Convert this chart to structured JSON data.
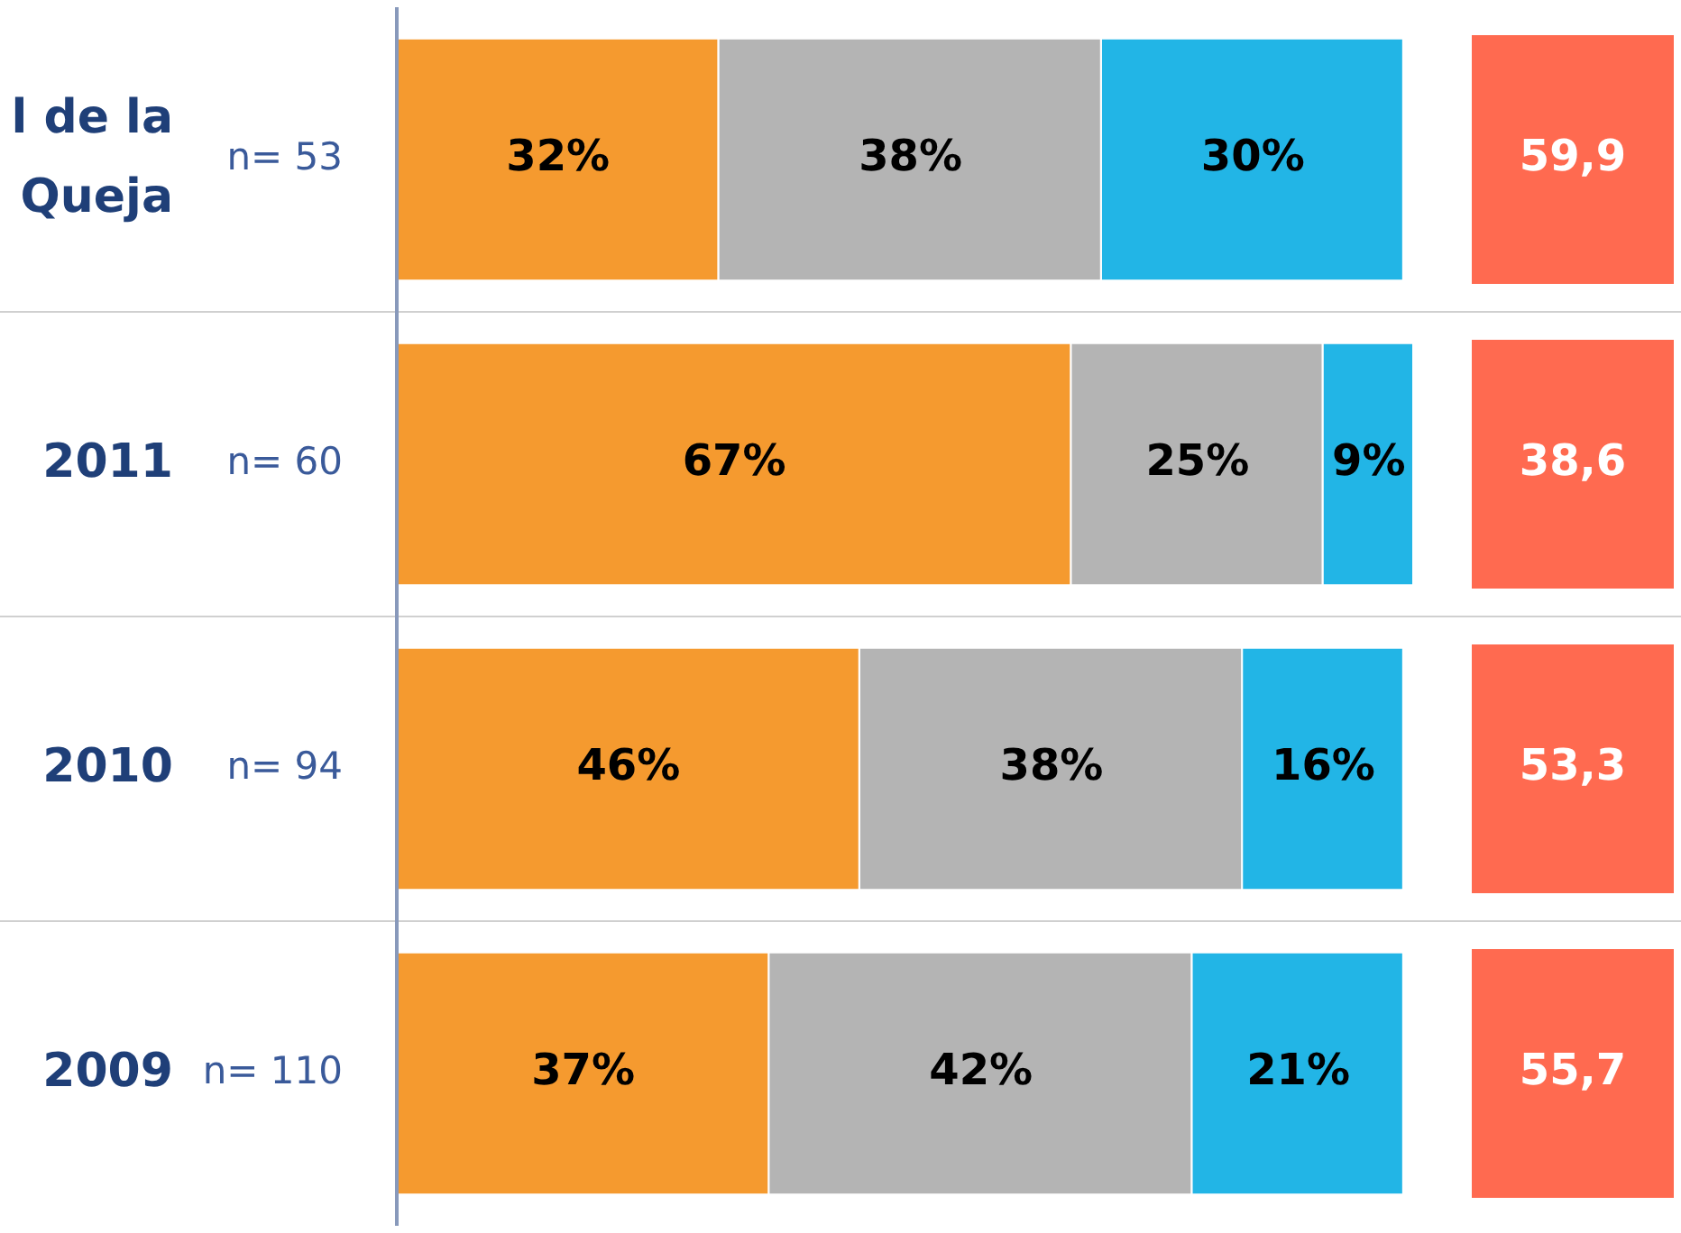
{
  "chart_data": {
    "type": "bar",
    "orientation": "horizontal",
    "stacked": true,
    "legend": false,
    "grid": "y",
    "categories": [
      "l de la Queja",
      "2011",
      "2010",
      "2009"
    ],
    "series": [
      {
        "color": "#f59a2f",
        "values": [
          32,
          67,
          46,
          37
        ],
        "value_labels": [
          "32%",
          "67%",
          "46%",
          "37%"
        ]
      },
      {
        "color": "#b4b4b4",
        "values": [
          38,
          25,
          38,
          42
        ],
        "value_labels": [
          "38%",
          "25%",
          "38%",
          "42%"
        ]
      },
      {
        "color": "#22b5e6",
        "values": [
          30,
          9,
          16,
          21
        ],
        "value_labels": [
          "30%",
          "9%",
          "16%",
          "21%"
        ]
      }
    ],
    "annotations": [
      "n= 53",
      "n= 60",
      "n= 94",
      "n= 110",
      "59,9",
      "38,6",
      "53,3",
      "55,7"
    ]
  }
}
